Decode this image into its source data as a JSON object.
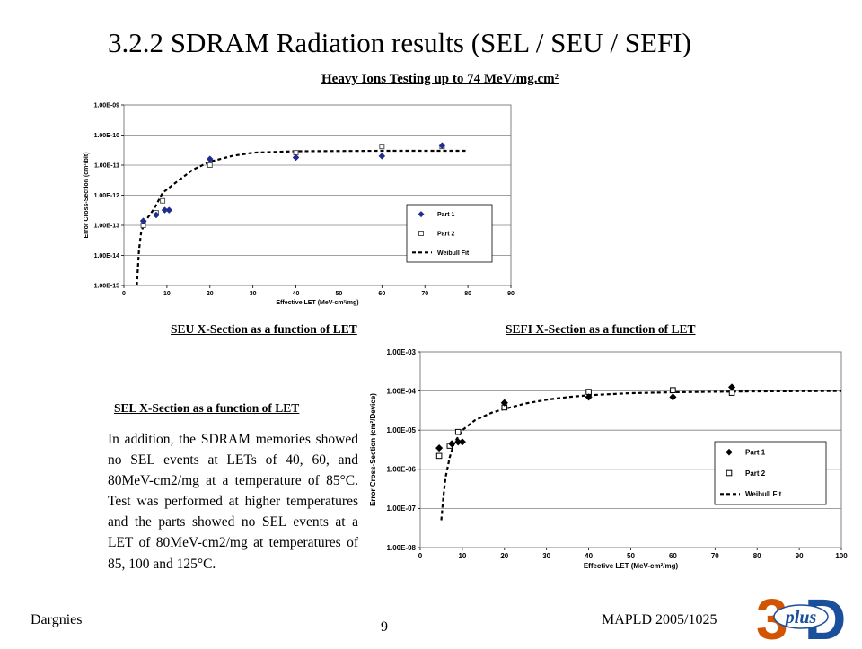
{
  "title": "3.2.2 SDRAM Radiation results (SEL / SEU / SEFI)",
  "subtitle": "Heavy Ions Testing up to 74 MeV/mg.cm²",
  "captions": {
    "seu": "SEU X-Section as a function of LET",
    "sefi": "SEFI X-Section as a function of LET",
    "sel": "SEL X-Section as a function of LET"
  },
  "sel_text": "In addition, the SDRAM memories showed no SEL events at LETs of 40, 60, and 80MeV-cm2/mg at a temperature of 85°C. Test was performed at higher temperatures and the parts showed no SEL events at a LET of 80MeV-cm2/mg at temperatures of 85, 100 and 125°C.",
  "footer": {
    "left": "Dargnies",
    "center": "9",
    "right": "MAPLD 2005/1025"
  },
  "logo": {
    "text": "plus",
    "colors": [
      "#d35400",
      "#1a4f9c"
    ]
  },
  "chart_data": [
    {
      "type": "scatter",
      "xlabel": "Effective LET (MeV-cm²/mg)",
      "ylabel": "Error Cross-Section (cm²/bit)",
      "xlim": [
        0,
        90
      ],
      "x_ticks": [
        "0",
        "10",
        "20",
        "30",
        "40",
        "50",
        "60",
        "70",
        "80",
        "90"
      ],
      "ylim": [
        1e-15,
        1e-09
      ],
      "yscale": "log",
      "y_ticks": [
        "1.00E-15",
        "1.00E-14",
        "1.00E-13",
        "1.00E-12",
        "1.00E-11",
        "1.00E-10",
        "1.00E-09"
      ],
      "grid": true,
      "legend_position": "lower-right",
      "series": [
        {
          "name": "Part 1",
          "marker": "diamond",
          "color": "#1f2d8f",
          "points": [
            [
              4.5,
              1.4e-13
            ],
            [
              7.5,
              2.2e-13
            ],
            [
              9.5,
              3.2e-13
            ],
            [
              10.5,
              3.2e-13
            ],
            [
              20,
              1.6e-11
            ],
            [
              40,
              1.8e-11
            ],
            [
              60,
              2e-11
            ],
            [
              74,
              4.5e-11
            ]
          ]
        },
        {
          "name": "Part 2",
          "marker": "square",
          "color": "#555555",
          "points": [
            [
              4.5,
              1e-13
            ],
            [
              7.5,
              2.6e-13
            ],
            [
              9.0,
              6.5e-13
            ],
            [
              20,
              1e-11
            ],
            [
              40,
              2.6e-11
            ],
            [
              60,
              4.2e-11
            ],
            [
              74,
              4.2e-11
            ]
          ]
        },
        {
          "name": "Weibull Fit",
          "line": "dashed",
          "color": "#000000",
          "points": [
            [
              3,
              1e-15
            ],
            [
              3.5,
              1.5e-14
            ],
            [
              4,
              6e-14
            ],
            [
              5,
              1.4e-13
            ],
            [
              7,
              3.5e-13
            ],
            [
              9,
              1.2e-12
            ],
            [
              12,
              2.6e-12
            ],
            [
              16,
              7e-12
            ],
            [
              20,
              1.3e-11
            ],
            [
              25,
              2e-11
            ],
            [
              30,
              2.6e-11
            ],
            [
              40,
              2.9e-11
            ],
            [
              60,
              3e-11
            ],
            [
              80,
              3e-11
            ]
          ]
        }
      ]
    },
    {
      "type": "scatter",
      "xlabel": "Effective LET (MeV-cm²/mg)",
      "ylabel": "Error Cross-Section (cm²/Device)",
      "xlim": [
        0,
        100
      ],
      "x_ticks": [
        "0",
        "10",
        "20",
        "30",
        "40",
        "50",
        "60",
        "70",
        "80",
        "90",
        "100"
      ],
      "ylim": [
        1e-08,
        0.001
      ],
      "yscale": "log",
      "y_ticks": [
        "1.00E-08",
        "1.00E-07",
        "1.00E-06",
        "1.00E-05",
        "1.00E-04",
        "1.00E-03"
      ],
      "grid": true,
      "legend_position": "lower-right",
      "series": [
        {
          "name": "Part 1",
          "marker": "diamond",
          "color": "#000000",
          "points": [
            [
              4.5,
              3.5e-06
            ],
            [
              7.5,
              4.5e-06
            ],
            [
              9.0,
              5e-06
            ],
            [
              10.0,
              5e-06
            ],
            [
              20,
              5e-05
            ],
            [
              40,
              7e-05
            ],
            [
              60,
              7e-05
            ],
            [
              74,
              0.000125
            ]
          ]
        },
        {
          "name": "Part 2",
          "marker": "square",
          "color": "#000000",
          "points": [
            [
              4.5,
              2.2e-06
            ],
            [
              7.0,
              4e-06
            ],
            [
              9.0,
              9e-06
            ],
            [
              20,
              3.8e-05
            ],
            [
              40,
              9.5e-05
            ],
            [
              60,
              0.000105
            ],
            [
              74,
              9e-05
            ]
          ]
        },
        {
          "name": "Weibull Fit",
          "line": "dashed",
          "color": "#000000",
          "points": [
            [
              5,
              5e-08
            ],
            [
              5.5,
              2e-07
            ],
            [
              6,
              6e-07
            ],
            [
              7,
              2e-06
            ],
            [
              8,
              4.5e-06
            ],
            [
              10,
              1e-05
            ],
            [
              13,
              1.8e-05
            ],
            [
              17,
              2.8e-05
            ],
            [
              20,
              3.5e-05
            ],
            [
              25,
              4.8e-05
            ],
            [
              30,
              6e-05
            ],
            [
              35,
              7e-05
            ],
            [
              40,
              7.8e-05
            ],
            [
              50,
              8.8e-05
            ],
            [
              60,
              9.3e-05
            ],
            [
              70,
              9.6e-05
            ],
            [
              80,
              9.8e-05
            ],
            [
              90,
              9.9e-05
            ],
            [
              100,
              0.0001
            ]
          ]
        }
      ]
    }
  ]
}
